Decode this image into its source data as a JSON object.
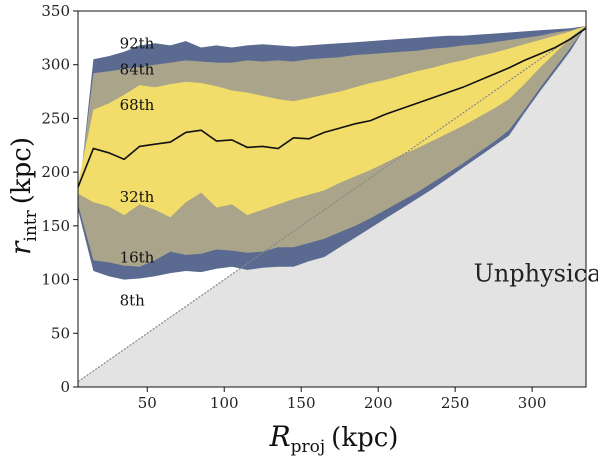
{
  "chart_data": {
    "type": "area",
    "title": "",
    "xlabel": {
      "main": "R",
      "sub": "proj",
      "unit": "(kpc)"
    },
    "ylabel": {
      "main": "r",
      "sub": "intr",
      "unit": "(kpc)"
    },
    "xlim": [
      5,
      335
    ],
    "ylim": [
      0,
      350
    ],
    "xticks": [
      50,
      100,
      150,
      200,
      250,
      300
    ],
    "yticks": [
      0,
      50,
      100,
      150,
      200,
      250,
      300,
      350
    ],
    "grid": false,
    "x": [
      5,
      15,
      25,
      35,
      45,
      55,
      65,
      75,
      85,
      95,
      105,
      115,
      125,
      135,
      145,
      155,
      165,
      175,
      185,
      195,
      205,
      215,
      225,
      235,
      245,
      255,
      265,
      275,
      285,
      295,
      305,
      315,
      325,
      335
    ],
    "bands": [
      {
        "name": "8th-92nd",
        "color": "#5b6a91",
        "lower": [
          165,
          108,
          103,
          100,
          101,
          103,
          106,
          108,
          107,
          110,
          112,
          109,
          111,
          112,
          112,
          117,
          121,
          130,
          139,
          148,
          157,
          166,
          175,
          184,
          194,
          204,
          214,
          224,
          234,
          255,
          275,
          294,
          313,
          336
        ],
        "upper": [
          170,
          305,
          308,
          312,
          318,
          320,
          318,
          322,
          316,
          318,
          316,
          318,
          319,
          318,
          317,
          318,
          319,
          320,
          321,
          322,
          323,
          324,
          325,
          326,
          327,
          327,
          328,
          329,
          330,
          331,
          332,
          333,
          334,
          336
        ]
      },
      {
        "name": "16th-84th",
        "color": "#a9a48a",
        "lower": [
          170,
          118,
          116,
          113,
          112,
          118,
          126,
          123,
          124,
          128,
          127,
          125,
          126,
          130,
          130,
          134,
          138,
          144,
          150,
          157,
          165,
          173,
          181,
          190,
          199,
          208,
          218,
          228,
          239,
          258,
          278,
          297,
          316,
          336
        ],
        "upper": [
          175,
          292,
          294,
          296,
          298,
          300,
          302,
          304,
          303,
          302,
          302,
          304,
          303,
          304,
          303,
          305,
          306,
          307,
          309,
          310,
          311,
          312,
          313,
          315,
          316,
          318,
          319,
          321,
          323,
          325,
          327,
          330,
          332,
          336
        ]
      },
      {
        "name": "32nd-68th",
        "color": "#f2dd6a",
        "lower": [
          180,
          172,
          168,
          160,
          170,
          165,
          158,
          172,
          181,
          167,
          170,
          160,
          165,
          170,
          175,
          179,
          183,
          190,
          196,
          202,
          209,
          216,
          222,
          229,
          236,
          243,
          251,
          259,
          268,
          282,
          297,
          311,
          325,
          336
        ],
        "upper": [
          190,
          258,
          264,
          272,
          281,
          279,
          282,
          284,
          283,
          280,
          276,
          274,
          271,
          268,
          266,
          269,
          272,
          275,
          279,
          283,
          286,
          290,
          294,
          297,
          301,
          304,
          308,
          311,
          315,
          319,
          323,
          327,
          331,
          336
        ]
      }
    ],
    "median": {
      "name": "median",
      "color": "#111111",
      "values": [
        186,
        222,
        218,
        212,
        224,
        226,
        228,
        237,
        239,
        229,
        230,
        223,
        224,
        222,
        232,
        231,
        237,
        241,
        245,
        248,
        254,
        259,
        264,
        269,
        274,
        279,
        285,
        291,
        297,
        304,
        310,
        316,
        324,
        334
      ]
    },
    "unphysical_boundary": {
      "x": [
        5,
        335
      ],
      "y": [
        5,
        335
      ]
    },
    "band_labels": [
      {
        "text": "92th",
        "x": 32,
        "y": 315
      },
      {
        "text": "84th",
        "x": 32,
        "y": 291
      },
      {
        "text": "68th",
        "x": 32,
        "y": 258
      },
      {
        "text": "32th",
        "x": 32,
        "y": 172
      },
      {
        "text": "16th",
        "x": 32,
        "y": 116
      },
      {
        "text": "8th",
        "x": 32,
        "y": 76
      }
    ],
    "region_label": {
      "text": "Unphysical",
      "x": 262,
      "y": 98
    }
  },
  "colors": {
    "unphysical_fill": "#e3e3e3",
    "boundary_line": "#888888"
  }
}
